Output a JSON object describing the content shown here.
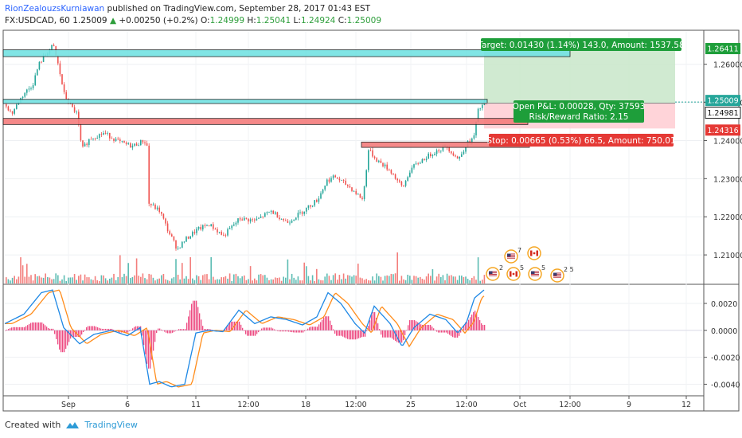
{
  "header": {
    "author": "RionZealouzsKurniawan",
    "published_text": "published on TradingView.com, September 28, 2017 01:43 EST",
    "symbol": "FX:USDCAD, 60",
    "last": "1.25009",
    "arrow": "▲",
    "change": "+0.00250 (+0.2%)",
    "o_label": "O:",
    "o_val": "1.24999",
    "h_label": "H:",
    "h_val": "1.25041",
    "l_label": "L:",
    "l_val": "1.24924",
    "c_label": "C:",
    "c_val": "1.25009"
  },
  "footer": {
    "created_with": "Created with",
    "brand": "TradingView",
    "icon": "tradingview-logo-icon"
  },
  "colors": {
    "up": "#26a69a",
    "down": "#ef5350",
    "target_zone": "#c8e6c9",
    "stop_zone": "#ffcdd2",
    "supply_zone": "#74e3e3",
    "demand_zone": "#f47d7d",
    "macd": "#1e88e5",
    "signal": "#ff8c1a",
    "hist_pos": "#e91e63",
    "badge_green": "#1e9e3a",
    "badge_red": "#e53935"
  },
  "chart_data": [
    {
      "type": "candlestick",
      "y_ticks": [
        "1.26000",
        "1.25000",
        "1.24000",
        "1.23000",
        "1.22000",
        "1.21000"
      ],
      "y_ticks_values": [
        1.26,
        1.25,
        1.24,
        1.23,
        1.22,
        1.21
      ],
      "ylim": [
        1.2025,
        1.2685
      ],
      "x_ticks": [
        "Sep",
        "6",
        "11",
        "12:00",
        "18",
        "12:00",
        "25",
        "12:00",
        "Oct",
        "12:00",
        "9",
        "12"
      ],
      "price_labels": [
        {
          "text": "1.26411",
          "value": 1.26411,
          "kind": "target"
        },
        {
          "text": "1.25009",
          "value": 1.25009,
          "kind": "last"
        },
        {
          "text": "1.24981",
          "value": 1.24981,
          "kind": "entry"
        },
        {
          "text": "1.24316",
          "value": 1.24316,
          "kind": "stop"
        }
      ],
      "annotations": {
        "target": "Target: 0.01430 (1.14%) 143.0, Amount: 1537.58",
        "open_pl": "Open P&L: 0.00028, Qty: 37593",
        "rr": "Risk/Reward Ratio: 2.15",
        "stop": "Stop: 0.00665 (0.53%) 66.5, Amount: 750.01"
      },
      "zones": [
        {
          "name": "supply",
          "top": 1.2638,
          "bottom": 1.262,
          "color": "cyan"
        },
        {
          "name": "resistance",
          "top": 1.2508,
          "bottom": 1.2497,
          "color": "cyan"
        },
        {
          "name": "support",
          "top": 1.2458,
          "bottom": 1.2442,
          "color": "red"
        },
        {
          "name": "demand",
          "top": 1.2396,
          "bottom": 1.2382,
          "color": "red"
        }
      ],
      "position": {
        "entry": 1.24981,
        "target": 1.26411,
        "stop": 1.24316
      },
      "events": [
        {
          "label": "7",
          "flag": "us"
        },
        {
          "label": "",
          "flag": "ca"
        },
        {
          "label": "2",
          "flag": "us"
        },
        {
          "label": "5",
          "flag": "ca"
        },
        {
          "label": "5",
          "flag": "us"
        },
        {
          "label": "2 5",
          "flag": "us"
        }
      ]
    },
    {
      "type": "line",
      "name_hint": "MACD",
      "y_ticks": [
        "0.0020",
        "0.0000",
        "-0.0020",
        "-0.0040"
      ],
      "y_ticks_values": [
        0.002,
        0.0,
        -0.002,
        -0.004
      ],
      "ylim": [
        -0.0048,
        0.0033
      ]
    }
  ]
}
